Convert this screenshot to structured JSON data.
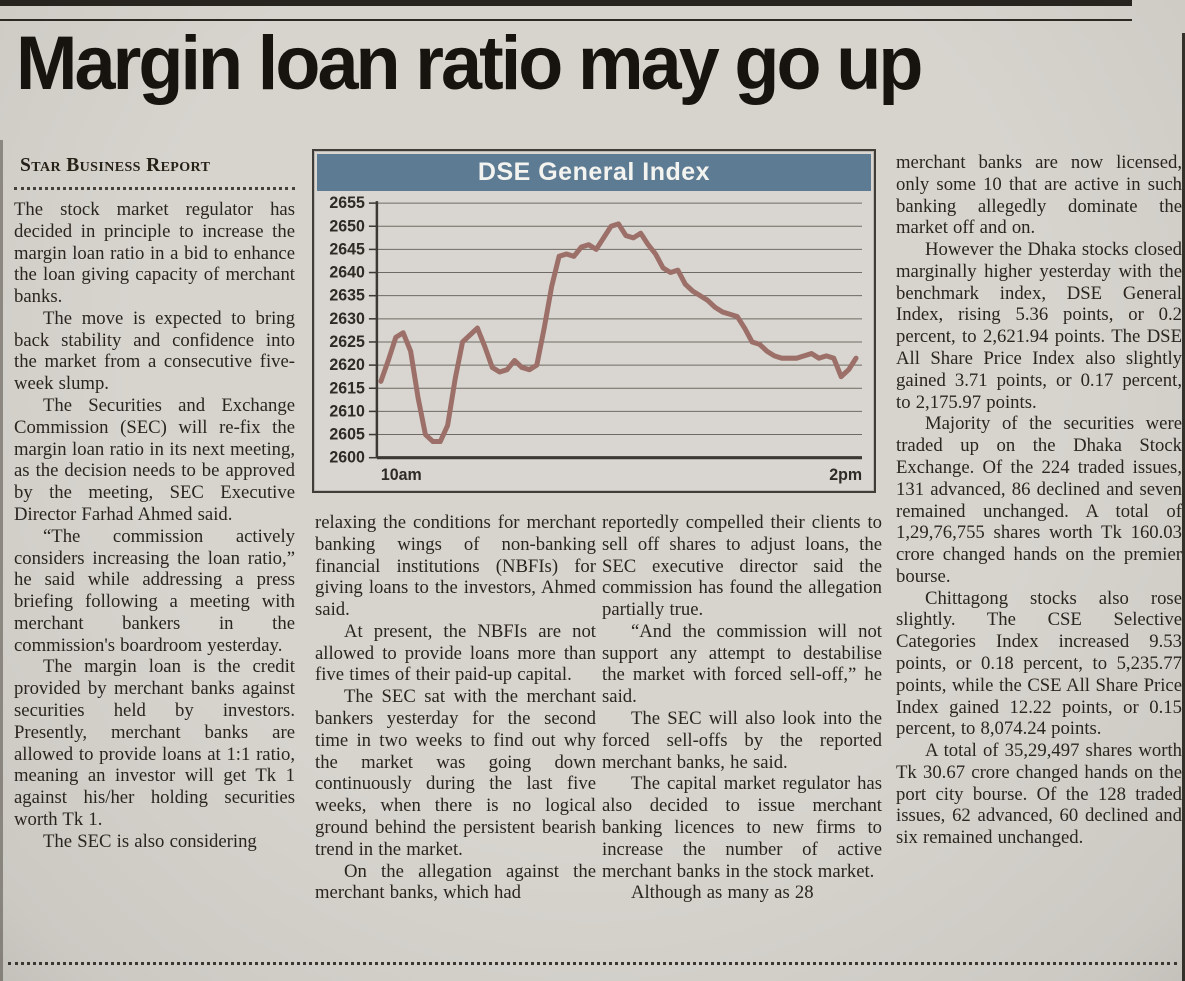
{
  "headline": "Margin loan ratio may go up",
  "byline": "Star Business Report",
  "columns": {
    "col1": [
      "The stock market regulator has decided in principle to increase the margin loan ratio in a bid to enhance the loan giving capacity of merchant banks.",
      "The move is expected to bring back stability and confidence into the market from a consecutive five-week slump.",
      "The Securities and Exchange Commission (SEC) will re-fix the margin loan ratio in its next meeting, as the decision needs to be approved by the meeting, SEC Executive Director Farhad Ahmed said.",
      "“The commission actively considers increasing the loan ratio,” he said while addressing a press briefing following a meeting with merchant bankers in the commission's boardroom yesterday.",
      "The margin loan is the credit provided by merchant banks against securities held by investors. Presently, merchant banks are allowed to provide loans at 1:1 ratio, meaning an investor will get Tk 1 against his/her holding securities worth Tk 1.",
      "The SEC is also considering"
    ],
    "col2": [
      "relaxing the conditions for merchant banking wings of non-banking financial institutions (NBFIs) for giving loans to the investors, Ahmed said.",
      "At present, the NBFIs are not allowed to provide loans more than five times of their paid-up capital.",
      "The SEC sat with the merchant bankers yesterday for the second time in two weeks to find out why the market was going down continuously during the last five weeks, when there is no logical ground behind the persistent bearish trend in the market.",
      "On the allegation against the merchant banks, which had"
    ],
    "col3": [
      "reportedly compelled their clients to sell off shares to adjust loans, the SEC executive director said the commission has found the allegation partially true.",
      "“And the commission will not support any attempt to destabilise the market with forced sell-off,” he said.",
      "The SEC will also look into the forced sell-offs by the reported merchant banks, he said.",
      "The capital market regulator has also decided to issue merchant banking licences to new firms to increase the number of active merchant banks in the stock market.",
      "Although as many as 28"
    ],
    "col4": [
      "merchant banks are now licensed, only some 10 that are active in such banking allegedly dominate the market off and on.",
      "However the Dhaka stocks closed marginally higher yesterday with the benchmark index, DSE General Index, rising 5.36 points, or 0.2 percent, to 2,621.94 points. The DSE All Share Price Index also slightly gained 3.71 points, or 0.17 percent, to 2,175.97 points.",
      "Majority of the securities were traded up on the Dhaka Stock Exchange. Of the 224 traded issues, 131 advanced, 86 declined and seven remained unchanged. A total of 1,29,76,755 shares worth Tk 160.03 crore changed hands on the premier bourse.",
      "Chittagong stocks also rose slightly. The CSE Selective Categories Index increased 9.53 points, or 0.18 percent, to 5,235.77 points, while the CSE All Share Price Index gained 12.22 points, or 0.15 percent, to 8,074.24 points.",
      "A total of 35,29,497 shares worth Tk 30.67 crore changed hands on the port city bourse. Of the 128 traded issues, 62 advanced, 60 declined and six remained unchanged."
    ]
  },
  "chart_data": {
    "type": "line",
    "title": "DSE General Index",
    "xlabel": "",
    "ylabel": "",
    "x_ticks": [
      "10am",
      "2pm"
    ],
    "y_ticks": [
      "2655",
      "2650",
      "2645",
      "2640",
      "2635",
      "2630",
      "2625",
      "2620",
      "2615",
      "2610",
      "2605",
      "2600"
    ],
    "ylim": [
      2600,
      2655
    ],
    "grid": "horizontal",
    "legend": "none",
    "line_color": "#9c7068",
    "header_color": "#5e7b94",
    "values": [
      2616.5,
      2621,
      2626,
      2627,
      2623,
      2613,
      2605,
      2603.5,
      2603.5,
      2607,
      2617,
      2625,
      2626.5,
      2628,
      2624,
      2619.5,
      2618.5,
      2619,
      2621,
      2619.5,
      2619,
      2620,
      2628,
      2637,
      2643.5,
      2644,
      2643.5,
      2645.5,
      2646,
      2645,
      2647.5,
      2650,
      2650.5,
      2648,
      2647.5,
      2648.5,
      2646,
      2644,
      2641,
      2640,
      2640.5,
      2637.5,
      2636,
      2635,
      2634,
      2632.5,
      2631.5,
      2631,
      2630.5,
      2628,
      2625,
      2624.5,
      2623,
      2622,
      2621.5,
      2621.5,
      2621.5,
      2622,
      2622.5,
      2621.5,
      2622,
      2621.5,
      2617.5,
      2619,
      2621.5
    ]
  }
}
